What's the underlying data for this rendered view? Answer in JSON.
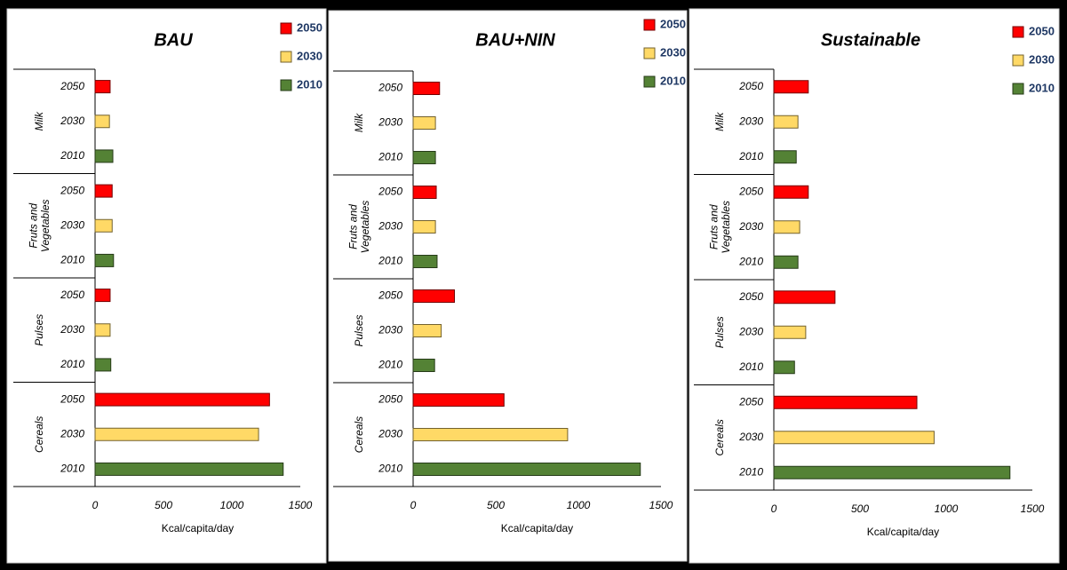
{
  "chart_data": [
    {
      "type": "bar",
      "orientation": "horizontal",
      "title": "BAU",
      "categories": [
        "Cereals",
        "Pulses",
        "Fruts and Vegetables",
        "Milk"
      ],
      "series": [
        {
          "name": "2010",
          "color": "#548235",
          "values": [
            1375,
            115,
            135,
            130
          ]
        },
        {
          "name": "2030",
          "color": "#ffd966",
          "values": [
            1195,
            110,
            125,
            105
          ]
        },
        {
          "name": "2050",
          "color": "#ff0000",
          "values": [
            1275,
            110,
            125,
            110
          ]
        }
      ],
      "xlim": [
        0,
        1500
      ],
      "xticks": [
        0,
        500,
        1000,
        1500
      ],
      "xlabel": "Kcal/capita/day",
      "legend": "top-right"
    },
    {
      "type": "bar",
      "orientation": "horizontal",
      "title": "BAU+NIN",
      "categories": [
        "Cereals",
        "Pulses",
        "Fruts and Vegetables",
        "Milk"
      ],
      "series": [
        {
          "name": "2010",
          "color": "#548235",
          "values": [
            1375,
            130,
            145,
            135
          ]
        },
        {
          "name": "2030",
          "color": "#ffd966",
          "values": [
            935,
            170,
            135,
            135
          ]
        },
        {
          "name": "2050",
          "color": "#ff0000",
          "values": [
            550,
            250,
            140,
            160
          ]
        }
      ],
      "xlim": [
        0,
        1500
      ],
      "xticks": [
        0,
        500,
        1000,
        1500
      ],
      "xlabel": "Kcal/capita/day",
      "legend": "top-right"
    },
    {
      "type": "bar",
      "orientation": "horizontal",
      "title": "Sustainable",
      "categories": [
        "Cereals",
        "Pulses",
        "Fruts and Vegetables",
        "Milk"
      ],
      "series": [
        {
          "name": "2010",
          "color": "#548235",
          "values": [
            1370,
            120,
            140,
            130
          ]
        },
        {
          "name": "2030",
          "color": "#ffd966",
          "values": [
            930,
            185,
            150,
            140
          ]
        },
        {
          "name": "2050",
          "color": "#ff0000",
          "values": [
            830,
            355,
            200,
            200
          ]
        }
      ],
      "xlim": [
        0,
        1500
      ],
      "xticks": [
        0,
        500,
        1000,
        1500
      ],
      "xlabel": "Kcal/capita/day",
      "legend": "top-right"
    }
  ]
}
